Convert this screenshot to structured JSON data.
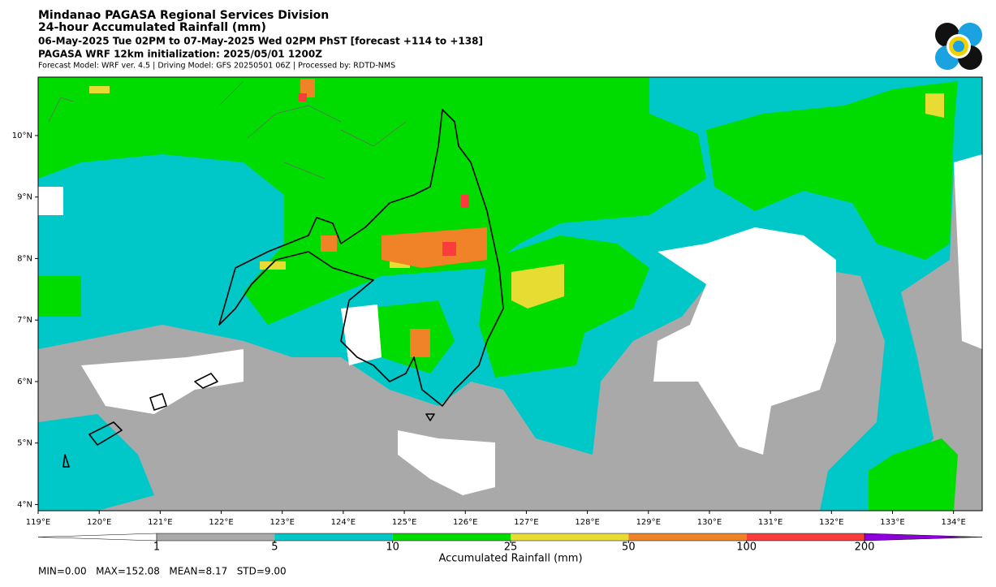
{
  "header": {
    "title": "Mindanao PAGASA Regional Services Division",
    "subtitle": "24-hour Accumulated Rainfall (mm)",
    "period": "06-May-2025 Tue 02PM to 07-May-2025 Wed 02PM PhST [forecast +114 to +138]",
    "initialization": "PAGASA WRF 12km initialization: 2025/05/01 1200Z",
    "credits": "Forecast Model: WRF ver. 4.5 | Driving Model: GFS 20250501 06Z | Processed by: RDTD-NMS"
  },
  "map": {
    "lon_range": [
      119,
      134.47
    ],
    "lat_range": [
      3.9,
      10.95
    ],
    "lon_ticks": [
      {
        "value": 119,
        "label": "119°E"
      },
      {
        "value": 120,
        "label": "120°E"
      },
      {
        "value": 121,
        "label": "121°E"
      },
      {
        "value": 122,
        "label": "122°E"
      },
      {
        "value": 123,
        "label": "123°E"
      },
      {
        "value": 124,
        "label": "124°E"
      },
      {
        "value": 125,
        "label": "125°E"
      },
      {
        "value": 126,
        "label": "126°E"
      },
      {
        "value": 127,
        "label": "127°E"
      },
      {
        "value": 128,
        "label": "128°E"
      },
      {
        "value": 129,
        "label": "129°E"
      },
      {
        "value": 130,
        "label": "130°E"
      },
      {
        "value": 131,
        "label": "131°E"
      },
      {
        "value": 132,
        "label": "132°E"
      },
      {
        "value": 133,
        "label": "133°E"
      },
      {
        "value": 134,
        "label": "134°E"
      }
    ],
    "lat_ticks": [
      {
        "value": 4,
        "label": "4°N"
      },
      {
        "value": 5,
        "label": "5°N"
      },
      {
        "value": 6,
        "label": "6°N"
      },
      {
        "value": 7,
        "label": "7°N"
      },
      {
        "value": 8,
        "label": "8°N"
      },
      {
        "value": 9,
        "label": "9°N"
      },
      {
        "value": 10,
        "label": "10°N"
      }
    ]
  },
  "colorbar": {
    "label": "Accumulated Rainfall (mm)",
    "ticks": [
      1,
      5,
      10,
      25,
      50,
      100,
      200
    ],
    "colors": [
      "#a9a9a9",
      "#00c8c8",
      "#00dc00",
      "#e6dc32",
      "#f08228",
      "#fa3c3c"
    ],
    "under_color": "#ffffff",
    "over_color": "#8c00dc"
  },
  "stats": "MIN=0.00   MAX=152.08   MEAN=8.17   STD=9.00"
}
